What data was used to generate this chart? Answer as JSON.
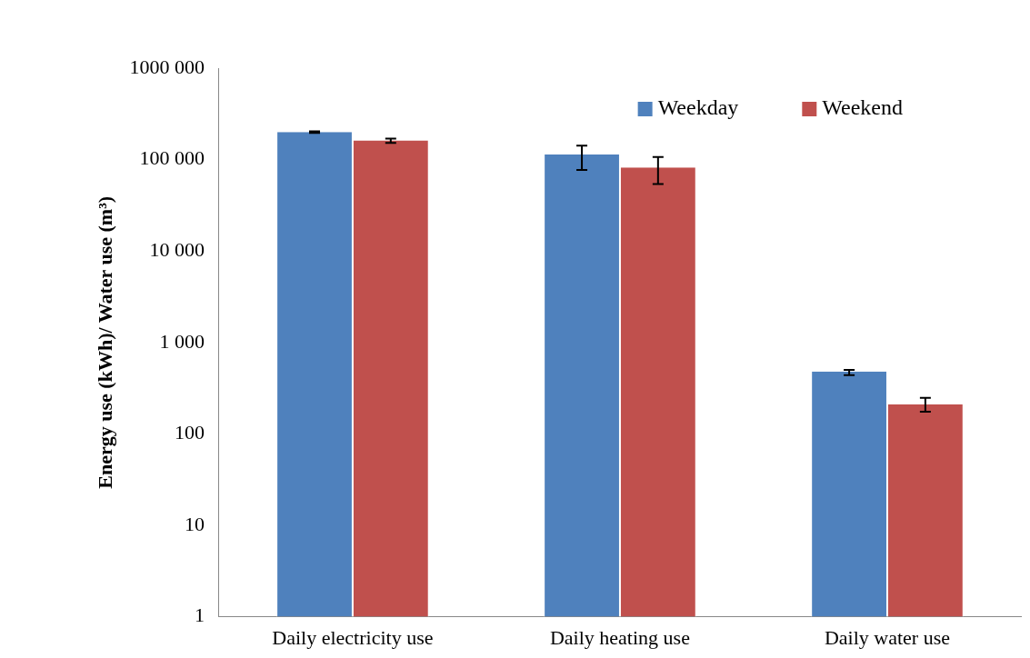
{
  "chart_data": {
    "type": "bar",
    "ylabel": "Energy use (kWh)/ Water use (m³)",
    "categories": [
      "Daily electricity use",
      "Daily heating use",
      "Daily water use"
    ],
    "series": [
      {
        "name": "Weekday",
        "color": "#4f81bd",
        "values": [
          200000,
          114000,
          480
        ],
        "errors": [
          [
            196000,
            204000
          ],
          [
            77000,
            142000
          ],
          [
            440,
            500
          ]
        ]
      },
      {
        "name": "Weekend",
        "color": "#c0504d",
        "values": [
          162000,
          82000,
          210
        ],
        "errors": [
          [
            152000,
            170000
          ],
          [
            54000,
            107000
          ],
          [
            175,
            248
          ]
        ]
      }
    ],
    "log": true,
    "ylim": [
      1,
      1000000
    ],
    "yticks": [
      1,
      10,
      100,
      {
        "value": 1000,
        "label": "1 000"
      },
      {
        "value": 10000,
        "label": "10 000"
      },
      {
        "value": 100000,
        "label": "100 000"
      },
      {
        "value": 1000000,
        "label": "1000 000"
      }
    ],
    "grid": false,
    "legend": "top right"
  }
}
